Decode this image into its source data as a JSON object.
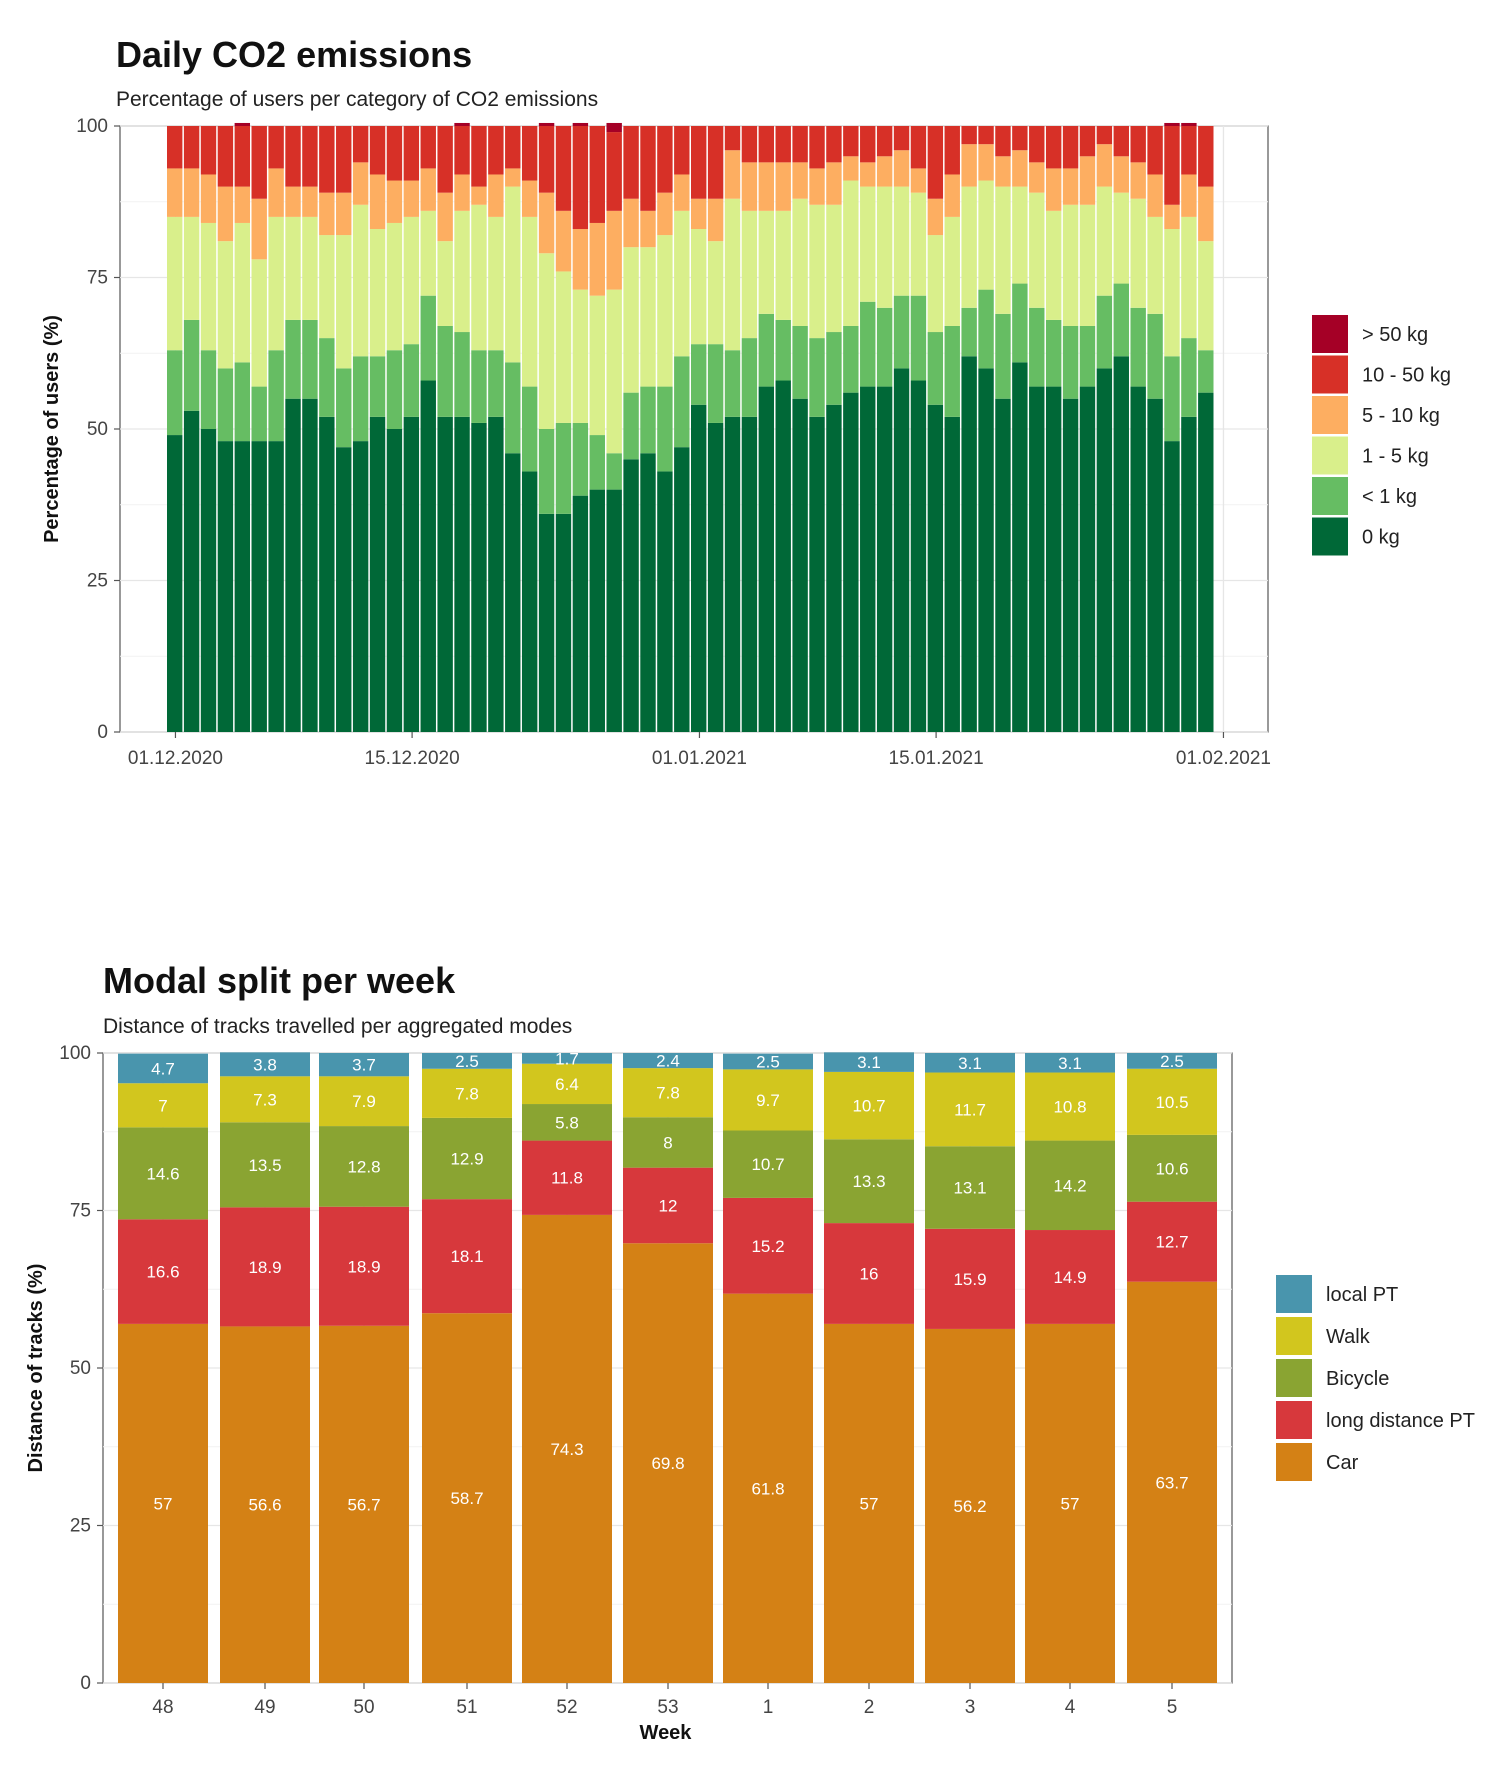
{
  "chart_data": [
    {
      "type": "bar",
      "stacked": true,
      "title": "Daily CO2 emissions",
      "subtitle": "Percentage of users per category of CO2 emissions",
      "xlabel": "",
      "ylabel": "Percentage of users (%)",
      "ylim": [
        0,
        100
      ],
      "yticks": [
        "0",
        "25",
        "50",
        "75",
        "100"
      ],
      "xtick_labels": [
        "01.12.2020",
        "15.12.2020",
        "01.01.2021",
        "15.01.2021",
        "01.02.2021"
      ],
      "x_start_date": "01.12.2020",
      "grid": true,
      "legend_position": "right",
      "legend": [
        "> 50 kg",
        "10 - 50 kg",
        "5 - 10 kg",
        "1 - 5 kg",
        "< 1 kg",
        "0 kg"
      ],
      "colors": {
        "0 kg": "#006837",
        "< 1 kg": "#66bd63",
        "1 - 5 kg": "#d9ef8b",
        "5 - 10 kg": "#fdae61",
        "10 - 50 kg": "#d73027",
        "> 50 kg": "#a50026"
      },
      "series": [
        {
          "name": "0 kg",
          "values": [
            49,
            53,
            50,
            48,
            48,
            48,
            48,
            55,
            55,
            52,
            47,
            48,
            52,
            50,
            52,
            58,
            52,
            52,
            51,
            52,
            46,
            43,
            36,
            36,
            39,
            40,
            40,
            45,
            46,
            43,
            47,
            54,
            51,
            52,
            52,
            57,
            58,
            55,
            52,
            54,
            56,
            57,
            57,
            60,
            58,
            54,
            52,
            62,
            60,
            55,
            61,
            57,
            57,
            55,
            57,
            60,
            62,
            57,
            55,
            48,
            52,
            56
          ]
        },
        {
          "name": "< 1 kg",
          "values": [
            14,
            15,
            13,
            12,
            13,
            9,
            15,
            13,
            13,
            13,
            13,
            14,
            10,
            13,
            12,
            14,
            15,
            14,
            12,
            11,
            15,
            14,
            14,
            15,
            12,
            9,
            6,
            11,
            11,
            14,
            15,
            10,
            13,
            11,
            13,
            12,
            10,
            12,
            13,
            12,
            11,
            14,
            13,
            12,
            14,
            12,
            15,
            8,
            13,
            14,
            13,
            13,
            11,
            12,
            10,
            12,
            12,
            13,
            14,
            14,
            13,
            7
          ]
        },
        {
          "name": "1 - 5 kg",
          "values": [
            22,
            17,
            21,
            21,
            23,
            21,
            22,
            17,
            17,
            17,
            22,
            25,
            21,
            21,
            21,
            14,
            14,
            20,
            24,
            22,
            29,
            28,
            29,
            25,
            22,
            23,
            27,
            24,
            23,
            25,
            24,
            19,
            17,
            25,
            21,
            17,
            18,
            21,
            22,
            21,
            24,
            19,
            20,
            18,
            17,
            16,
            18,
            20,
            18,
            21,
            16,
            19,
            18,
            20,
            20,
            18,
            15,
            18,
            16,
            21,
            20,
            18
          ]
        },
        {
          "name": "5 - 10 kg",
          "values": [
            8,
            8,
            8,
            9,
            6,
            10,
            8,
            5,
            5,
            7,
            7,
            7,
            9,
            7,
            6,
            7,
            8,
            6,
            3,
            7,
            3,
            6,
            10,
            10,
            10,
            12,
            13,
            8,
            6,
            7,
            6,
            5,
            7,
            8,
            8,
            8,
            8,
            6,
            6,
            7,
            4,
            4,
            5,
            6,
            4,
            6,
            7,
            7,
            6,
            5,
            6,
            5,
            7,
            6,
            8,
            7,
            6,
            6,
            7,
            4,
            7,
            9
          ]
        },
        {
          "name": "10 - 50 kg",
          "values": [
            7,
            7,
            8,
            10,
            10,
            12,
            7,
            10,
            10,
            11,
            11,
            6,
            8,
            9,
            9,
            7,
            11,
            8,
            10,
            8,
            7,
            9,
            11,
            14,
            17,
            16,
            13,
            12,
            14,
            11,
            8,
            12,
            12,
            4,
            6,
            6,
            6,
            6,
            7,
            6,
            5,
            6,
            5,
            4,
            7,
            12,
            8,
            3,
            3,
            5,
            4,
            6,
            7,
            7,
            5,
            3,
            5,
            6,
            8,
            13,
            8,
            10
          ]
        },
        {
          "name": "> 50 kg",
          "values": [
            0,
            0,
            0,
            0,
            0.5,
            0,
            0,
            0,
            0,
            0,
            0,
            0,
            0,
            0,
            0,
            0,
            0,
            0.5,
            0,
            0,
            0,
            0,
            0.5,
            0,
            0.5,
            0,
            1.5,
            0,
            0,
            0,
            0,
            0,
            0,
            0,
            0,
            0,
            0,
            0,
            0,
            0,
            0,
            0,
            0,
            0,
            0,
            0,
            0,
            0,
            0,
            0,
            0,
            0,
            0,
            0,
            0,
            0,
            0,
            0,
            0,
            0.5,
            0.5,
            0
          ]
        }
      ]
    },
    {
      "type": "bar",
      "stacked": true,
      "title": "Modal split per week",
      "subtitle": "Distance of tracks travelled per aggregated modes",
      "xlabel": "Week",
      "ylabel": "Distance of tracks (%)",
      "ylim": [
        0,
        100
      ],
      "yticks": [
        "0",
        "25",
        "50",
        "75",
        "100"
      ],
      "categories": [
        "48",
        "49",
        "50",
        "51",
        "52",
        "53",
        "1",
        "2",
        "3",
        "4",
        "5"
      ],
      "grid": true,
      "legend_position": "right",
      "legend": [
        "local PT",
        "Walk",
        "Bicycle",
        "long distance PT",
        "Car"
      ],
      "colors": {
        "Car": "#d48115",
        "long distance PT": "#d7383c",
        "Bicycle": "#8aa432",
        "Walk": "#d2c61e",
        "local PT": "#4995ad"
      },
      "series": [
        {
          "name": "Car",
          "values": [
            57,
            56.6,
            56.7,
            58.7,
            74.3,
            69.8,
            61.8,
            57,
            56.2,
            57,
            63.7
          ],
          "labels": [
            "57",
            "56.6",
            "56.7",
            "58.7",
            "74.3",
            "69.8",
            "61.8",
            "57",
            "56.2",
            "57",
            "63.7"
          ]
        },
        {
          "name": "long distance PT",
          "values": [
            16.6,
            18.9,
            18.9,
            18.1,
            11.8,
            12,
            15.2,
            16,
            15.9,
            14.9,
            12.7
          ],
          "labels": [
            "16.6",
            "18.9",
            "18.9",
            "18.1",
            "11.8",
            "12",
            "15.2",
            "16",
            "15.9",
            "14.9",
            "12.7"
          ]
        },
        {
          "name": "Bicycle",
          "values": [
            14.6,
            13.5,
            12.8,
            12.9,
            5.8,
            8,
            10.7,
            13.3,
            13.1,
            14.2,
            10.6
          ],
          "labels": [
            "14.6",
            "13.5",
            "12.8",
            "12.9",
            "5.8",
            "8",
            "10.7",
            "13.3",
            "13.1",
            "14.2",
            "10.6"
          ]
        },
        {
          "name": "Walk",
          "values": [
            7,
            7.3,
            7.9,
            7.8,
            6.4,
            7.8,
            9.7,
            10.7,
            11.7,
            10.8,
            10.5
          ],
          "labels": [
            "7",
            "7.3",
            "7.9",
            "7.8",
            "6.4",
            "7.8",
            "9.7",
            "10.7",
            "11.7",
            "10.8",
            "10.5"
          ]
        },
        {
          "name": "local PT",
          "values": [
            4.7,
            3.8,
            3.7,
            2.5,
            1.7,
            2.4,
            2.5,
            3.1,
            3.1,
            3.1,
            2.5
          ],
          "labels": [
            "4.7",
            "3.8",
            "3.7",
            "2.5",
            "1.7",
            "2.4",
            "2.5",
            "3.1",
            "3.1",
            "3.1",
            "2.5"
          ]
        }
      ]
    }
  ]
}
